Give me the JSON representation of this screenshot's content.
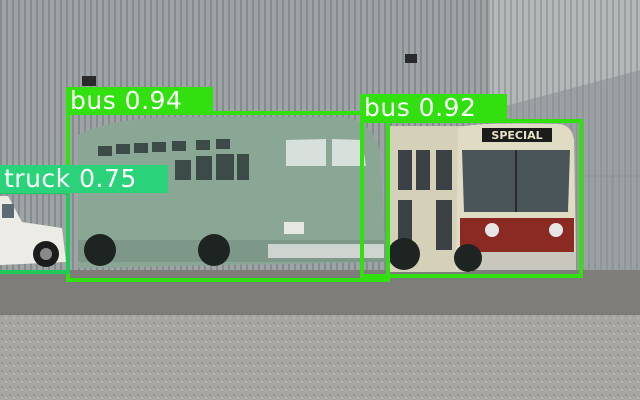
{
  "colors": {
    "bus_box": "#32e00f",
    "truck_box": "#1fc95a",
    "truck_label_bg": "#2ad37a",
    "label_text": "#ffffff"
  },
  "detections": [
    {
      "label": "bus 0.94",
      "class": "bus",
      "confidence": 0.94
    },
    {
      "label": "bus 0.92",
      "class": "bus",
      "confidence": 0.92
    },
    {
      "label": "truck 0.75",
      "class": "truck",
      "confidence": 0.75
    }
  ],
  "scene": {
    "bus_front_sign": "SPECIAL"
  }
}
